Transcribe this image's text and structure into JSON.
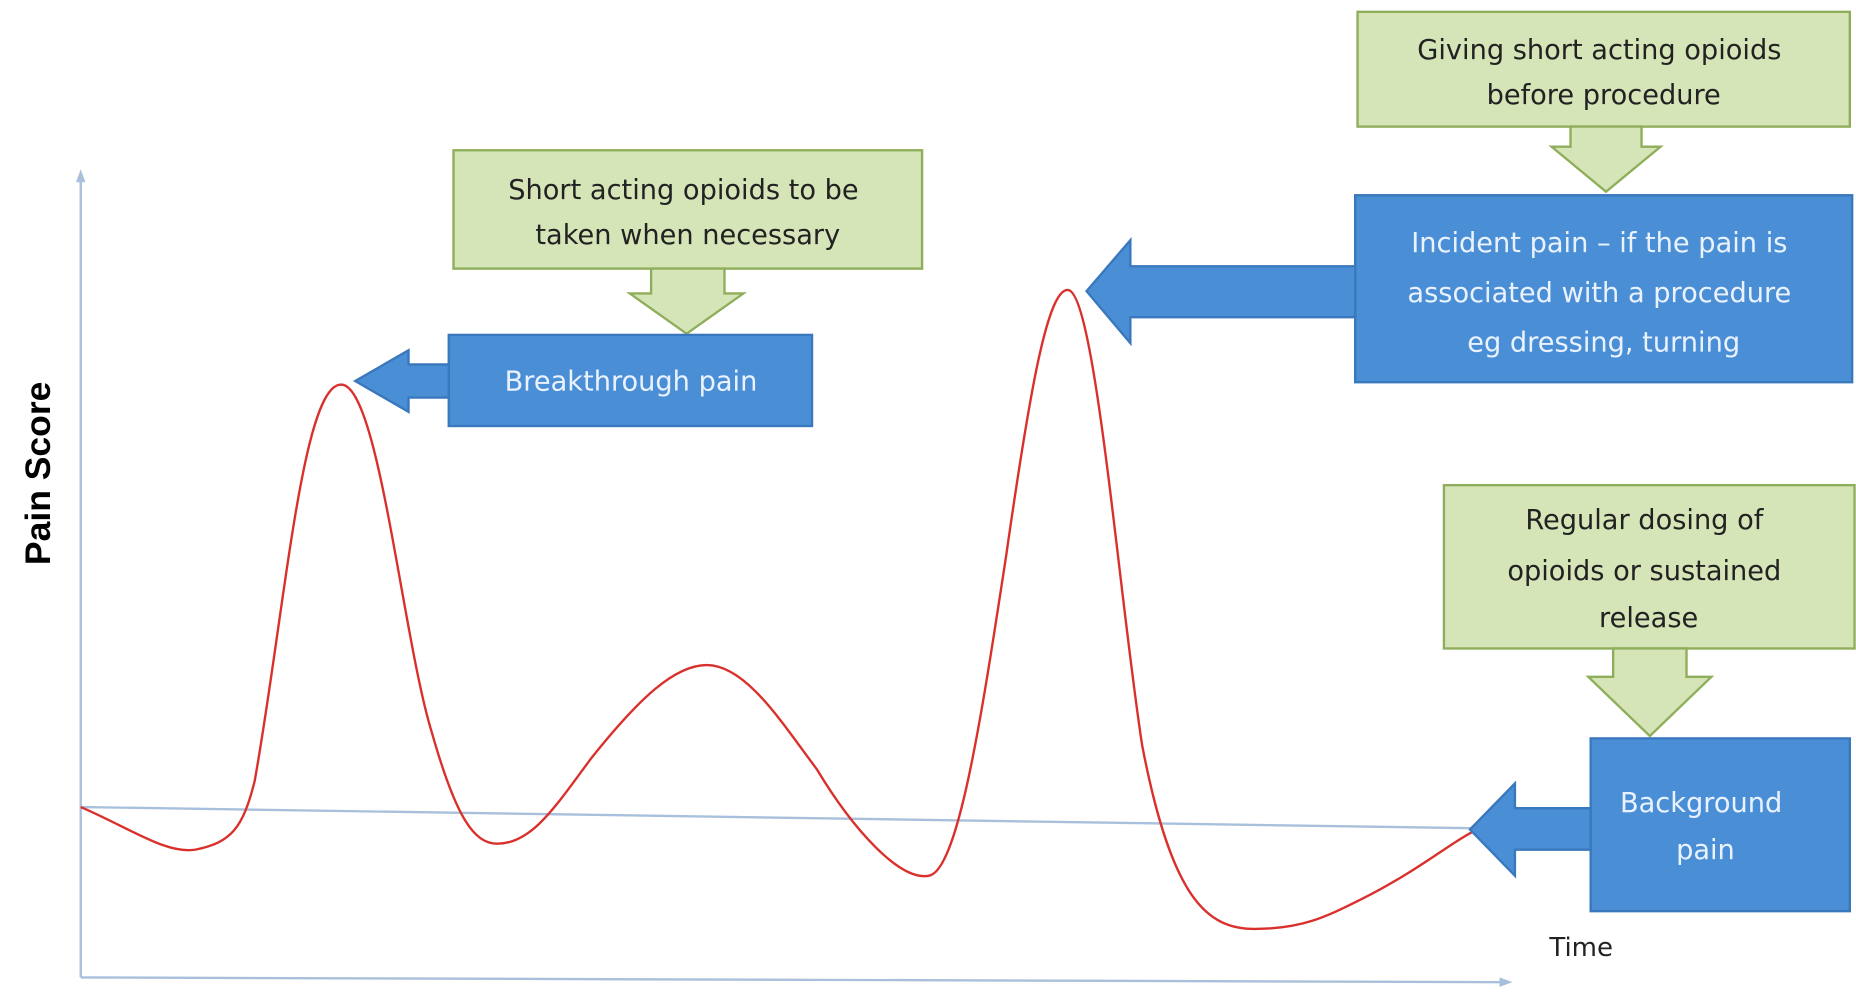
{
  "y_axis_label": "Pain Score",
  "x_axis_label": "Time",
  "callouts": [
    {
      "note": [
        "Short acting opioids to be",
        "taken when necessary"
      ],
      "label": [
        "Breakthrough pain"
      ]
    },
    {
      "note": [
        "Giving short acting opioids",
        "before procedure"
      ],
      "label": [
        "Incident pain – if the pain is",
        "associated with a procedure",
        "eg dressing, turning"
      ]
    },
    {
      "note": [
        "Regular dosing of",
        "opioids or sustained",
        "release"
      ],
      "label": [
        "Background",
        "pain"
      ]
    }
  ]
}
